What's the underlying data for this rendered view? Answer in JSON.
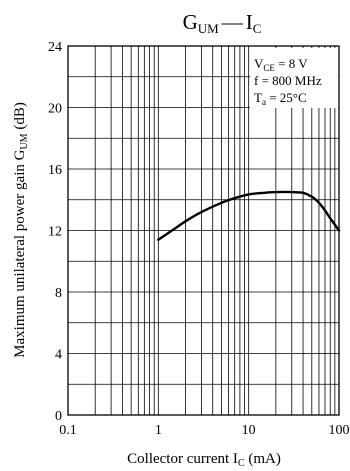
{
  "chart_data": {
    "type": "line",
    "title": {
      "main": "G",
      "main_sub": "UM",
      "dash": "—",
      "rhs": "I",
      "rhs_sub": "C"
    },
    "xlabel": {
      "text": "Collector current  I",
      "sub": "C",
      "unit": "  (mA)"
    },
    "ylabel": {
      "text": "Maximum unilateral power gain  G",
      "sub": "UM",
      "unit": "  (dB)"
    },
    "x_scale": "log",
    "xlim": [
      0.1,
      100
    ],
    "ylim": [
      0,
      24
    ],
    "x_ticks": [
      0.1,
      1,
      10,
      100
    ],
    "x_tick_labels": [
      "0.1",
      "1",
      "10",
      "100"
    ],
    "y_ticks": [
      0,
      4,
      8,
      12,
      16,
      20,
      24
    ],
    "y_tick_labels": [
      "0",
      "4",
      "8",
      "12",
      "16",
      "20",
      "24"
    ],
    "grid": true,
    "conditions": [
      {
        "text": "V",
        "sub": "CE",
        "rest": " = 8 V"
      },
      {
        "text": "f = 800 MHz",
        "sub": "",
        "rest": ""
      },
      {
        "text": "T",
        "sub": "a",
        "rest": " = 25°C"
      }
    ],
    "series": [
      {
        "x": [
          1,
          1.5,
          2,
          3,
          5,
          7,
          10,
          15,
          20,
          30,
          40,
          50,
          60,
          70,
          80,
          100
        ],
        "y": [
          11.4,
          12.1,
          12.6,
          13.2,
          13.8,
          14.1,
          14.35,
          14.45,
          14.5,
          14.5,
          14.45,
          14.2,
          13.8,
          13.3,
          12.8,
          12.0
        ]
      }
    ]
  }
}
